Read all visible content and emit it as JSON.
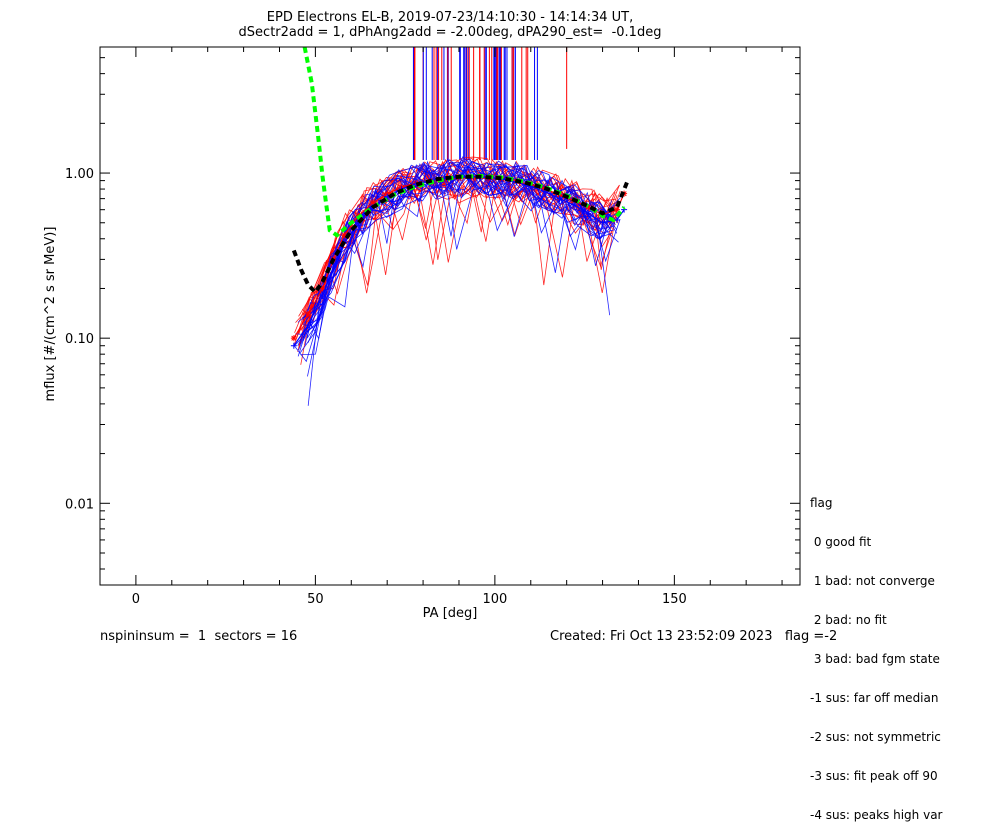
{
  "title_line1": "EPD Electrons EL-B, 2019-07-23/14:10:30 - 14:14:34 UT,",
  "title_line2": "dSectr2add = 1, dPhAng2add = -2.00deg, dPA290_est=  -0.1deg",
  "footer": {
    "left": "nspininsum =  1  sectors = 16",
    "right": "Created: Fri Oct 13 23:52:09 2023   flag =-2"
  },
  "legend": {
    "title": "flag",
    "items": [
      " 0 good fit",
      " 1 bad: not converge",
      " 2 bad: no fit",
      " 3 bad: bad fgm state",
      "-1 sus: far off median",
      "-2 sus: not symmetric",
      "-3 sus: fit peak off 90",
      "-4 sus: peaks high var"
    ]
  },
  "colors": {
    "red_series": "#ff0000",
    "blue_series": "#0000ff",
    "fit_curve": "#00ff00",
    "median_curve": "#000000"
  },
  "chart_data": {
    "type": "scatter",
    "xlabel": "PA [deg]",
    "ylabel": "mflux [#/(cm^2 s sr MeV)]",
    "xlim": [
      -10,
      185
    ],
    "ylim": [
      0.0032,
      5.8
    ],
    "yscale": "log",
    "xticks": [
      0,
      50,
      100,
      150
    ],
    "yticks": [
      0.01,
      0.1,
      1.0
    ],
    "ytick_labels": [
      "0.01",
      "0.10",
      "1.00"
    ],
    "series": [
      {
        "color": "red",
        "marker": "asterisk",
        "x": [
          44,
          48,
          52,
          55,
          58,
          62,
          66,
          70,
          74,
          78,
          82,
          86,
          90,
          94,
          98,
          102,
          106,
          110,
          114,
          118,
          122,
          126,
          130,
          134,
          136
        ],
        "y": [
          0.1,
          0.14,
          0.2,
          0.3,
          0.42,
          0.55,
          0.66,
          0.75,
          0.82,
          0.87,
          0.9,
          0.92,
          0.93,
          0.94,
          0.93,
          0.92,
          0.89,
          0.85,
          0.8,
          0.74,
          0.68,
          0.62,
          0.56,
          0.6,
          0.75
        ]
      },
      {
        "color": "blue",
        "marker": "plus",
        "x": [
          44,
          48,
          52,
          55,
          58,
          62,
          66,
          70,
          74,
          78,
          82,
          86,
          90,
          94,
          98,
          102,
          106,
          110,
          114,
          118,
          122,
          126,
          130,
          134,
          136
        ],
        "y": [
          0.09,
          0.12,
          0.18,
          0.27,
          0.38,
          0.5,
          0.62,
          0.72,
          0.8,
          0.86,
          0.9,
          0.93,
          0.94,
          0.95,
          0.94,
          0.92,
          0.88,
          0.83,
          0.77,
          0.7,
          0.64,
          0.57,
          0.5,
          0.52,
          0.6
        ]
      },
      {
        "color": "green",
        "style": "dashed-fit",
        "x": [
          47,
          49,
          50,
          51,
          52,
          53,
          54,
          56,
          60,
          66,
          72,
          78,
          84,
          90,
          96,
          102,
          108,
          114,
          120,
          126,
          130,
          133,
          136
        ],
        "y": [
          5.8,
          3.5,
          2.3,
          1.5,
          0.95,
          0.65,
          0.45,
          0.42,
          0.5,
          0.62,
          0.74,
          0.83,
          0.9,
          0.95,
          0.96,
          0.94,
          0.89,
          0.82,
          0.73,
          0.63,
          0.55,
          0.52,
          0.62
        ]
      },
      {
        "color": "black",
        "style": "dashed-median",
        "x": [
          44,
          46,
          48,
          50,
          52,
          55,
          60,
          66,
          72,
          78,
          84,
          90,
          96,
          102,
          108,
          114,
          120,
          126,
          130,
          134,
          137
        ],
        "y": [
          0.34,
          0.26,
          0.21,
          0.19,
          0.22,
          0.3,
          0.45,
          0.62,
          0.75,
          0.85,
          0.92,
          0.95,
          0.95,
          0.93,
          0.88,
          0.81,
          0.72,
          0.63,
          0.57,
          0.62,
          0.9
        ]
      }
    ]
  }
}
